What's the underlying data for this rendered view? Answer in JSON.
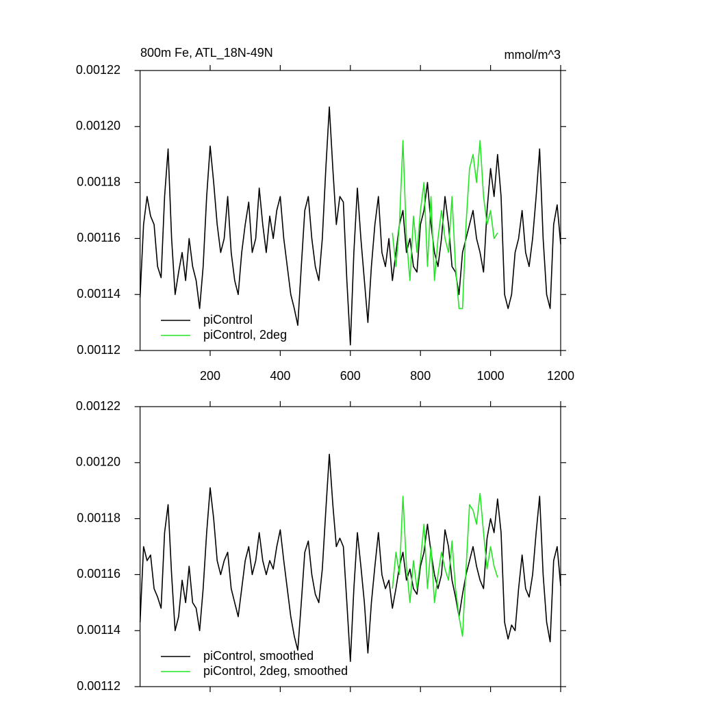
{
  "chart_data": [
    {
      "type": "line",
      "title": "800m Fe, ATL_18N-49N",
      "units": "mmol/m^3",
      "xlim": [
        0,
        1200
      ],
      "ylim": [
        0.00112,
        0.00122
      ],
      "xticks": [
        200,
        400,
        600,
        800,
        1000,
        1200
      ],
      "show_xtick_labels": true,
      "yticks": [
        0.00112,
        0.00114,
        0.00116,
        0.00118,
        {
          "value": 0.0012,
          "label": "0.00120"
        },
        0.00122
      ],
      "series": [
        {
          "name": "piControl",
          "color": "#000000",
          "x": [
            0,
            10,
            20,
            30,
            40,
            50,
            60,
            70,
            80,
            90,
            100,
            110,
            120,
            130,
            140,
            150,
            160,
            170,
            180,
            190,
            200,
            210,
            220,
            230,
            240,
            250,
            260,
            270,
            280,
            290,
            300,
            310,
            320,
            330,
            340,
            350,
            360,
            370,
            380,
            390,
            400,
            410,
            420,
            430,
            440,
            450,
            460,
            470,
            480,
            490,
            500,
            510,
            520,
            530,
            540,
            550,
            560,
            570,
            580,
            590,
            600,
            610,
            620,
            630,
            640,
            650,
            660,
            670,
            680,
            690,
            700,
            710,
            720,
            730,
            740,
            750,
            760,
            770,
            780,
            790,
            800,
            810,
            820,
            830,
            840,
            850,
            860,
            870,
            880,
            890,
            900,
            910,
            920,
            930,
            940,
            950,
            960,
            970,
            980,
            990,
            1000,
            1010,
            1020,
            1030,
            1040,
            1050,
            1060,
            1070,
            1080,
            1090,
            1100,
            1110,
            1120,
            1130,
            1140,
            1150,
            1160,
            1170,
            1180,
            1190,
            1200
          ],
          "values": [
            0.001139,
            0.001165,
            0.001175,
            0.001168,
            0.001165,
            0.00115,
            0.001146,
            0.001175,
            0.001192,
            0.00116,
            0.00114,
            0.001148,
            0.001155,
            0.001145,
            0.00116,
            0.00115,
            0.001145,
            0.001135,
            0.00115,
            0.001175,
            0.001193,
            0.00118,
            0.001165,
            0.001155,
            0.00116,
            0.001175,
            0.001155,
            0.001145,
            0.00114,
            0.001155,
            0.001165,
            0.001173,
            0.001155,
            0.00116,
            0.001178,
            0.001165,
            0.001155,
            0.001168,
            0.00116,
            0.00117,
            0.001175,
            0.00116,
            0.00115,
            0.00114,
            0.001135,
            0.001129,
            0.00115,
            0.00117,
            0.001175,
            0.00116,
            0.00115,
            0.001145,
            0.00116,
            0.001185,
            0.001207,
            0.001185,
            0.001165,
            0.001175,
            0.001173,
            0.001145,
            0.001122,
            0.001155,
            0.001178,
            0.00116,
            0.001145,
            0.00113,
            0.00115,
            0.001165,
            0.001175,
            0.001155,
            0.00115,
            0.00116,
            0.001145,
            0.001155,
            0.001165,
            0.00117,
            0.001155,
            0.00116,
            0.00115,
            0.001148,
            0.001165,
            0.00117,
            0.00118,
            0.001165,
            0.001155,
            0.00115,
            0.00116,
            0.001175,
            0.001165,
            0.00115,
            0.001148,
            0.00114,
            0.001155,
            0.00116,
            0.001165,
            0.00117,
            0.00116,
            0.001155,
            0.001148,
            0.00117,
            0.001185,
            0.001175,
            0.00119,
            0.001175,
            0.00114,
            0.001135,
            0.00114,
            0.001155,
            0.00116,
            0.00117,
            0.001155,
            0.00115,
            0.00116,
            0.001175,
            0.001192,
            0.00116,
            0.00114,
            0.001135,
            0.001165,
            0.001172,
            0.001158
          ]
        },
        {
          "name": "piControl, 2deg",
          "color": "#22e622",
          "x": [
            720,
            730,
            740,
            750,
            760,
            770,
            780,
            790,
            800,
            810,
            820,
            830,
            840,
            850,
            860,
            870,
            880,
            890,
            900,
            910,
            920,
            930,
            940,
            950,
            960,
            970,
            980,
            990,
            1000,
            1010,
            1020
          ],
          "values": [
            0.001162,
            0.00115,
            0.001165,
            0.001195,
            0.00116,
            0.001145,
            0.001168,
            0.001155,
            0.00117,
            0.00118,
            0.00115,
            0.001175,
            0.001145,
            0.00116,
            0.00117,
            0.00116,
            0.001155,
            0.001175,
            0.00115,
            0.001135,
            0.001135,
            0.001165,
            0.001185,
            0.00119,
            0.00118,
            0.001195,
            0.001175,
            0.001165,
            0.00117,
            0.00116,
            0.001162
          ]
        }
      ]
    },
    {
      "type": "line",
      "xlim": [
        0,
        1200
      ],
      "ylim": [
        0.00112,
        0.00122
      ],
      "xticks": [
        200,
        400,
        600,
        800,
        1000,
        1200
      ],
      "show_xtick_labels": false,
      "yticks": [
        0.00112,
        0.00114,
        0.00116,
        0.00118,
        {
          "value": 0.0012,
          "label": "0.00120"
        },
        0.00122
      ],
      "series": [
        {
          "name": "piControl, smoothed",
          "color": "#000000",
          "x": [
            0,
            10,
            20,
            30,
            40,
            50,
            60,
            70,
            80,
            90,
            100,
            110,
            120,
            130,
            140,
            150,
            160,
            170,
            180,
            190,
            200,
            210,
            220,
            230,
            240,
            250,
            260,
            270,
            280,
            290,
            300,
            310,
            320,
            330,
            340,
            350,
            360,
            370,
            380,
            390,
            400,
            410,
            420,
            430,
            440,
            450,
            460,
            470,
            480,
            490,
            500,
            510,
            520,
            530,
            540,
            550,
            560,
            570,
            580,
            590,
            600,
            610,
            620,
            630,
            640,
            650,
            660,
            670,
            680,
            690,
            700,
            710,
            720,
            730,
            740,
            750,
            760,
            770,
            780,
            790,
            800,
            810,
            820,
            830,
            840,
            850,
            860,
            870,
            880,
            890,
            900,
            910,
            920,
            930,
            940,
            950,
            960,
            970,
            980,
            990,
            1000,
            1010,
            1020,
            1030,
            1040,
            1050,
            1060,
            1070,
            1080,
            1090,
            1100,
            1110,
            1120,
            1130,
            1140,
            1150,
            1160,
            1170,
            1180,
            1190,
            1200
          ],
          "values": [
            0.001143,
            0.00117,
            0.001165,
            0.001167,
            0.001155,
            0.001152,
            0.001148,
            0.001175,
            0.001185,
            0.00116,
            0.00114,
            0.001145,
            0.001158,
            0.00115,
            0.001163,
            0.00115,
            0.001148,
            0.00114,
            0.001155,
            0.001175,
            0.001191,
            0.00118,
            0.001165,
            0.00116,
            0.001165,
            0.001168,
            0.001155,
            0.00115,
            0.001145,
            0.001155,
            0.001165,
            0.00117,
            0.00116,
            0.001165,
            0.001175,
            0.001165,
            0.00116,
            0.001165,
            0.001162,
            0.00117,
            0.001176,
            0.001165,
            0.001155,
            0.001145,
            0.001138,
            0.001133,
            0.00115,
            0.001168,
            0.001172,
            0.00116,
            0.001153,
            0.00115,
            0.001162,
            0.001183,
            0.001203,
            0.001185,
            0.00117,
            0.001173,
            0.00117,
            0.00115,
            0.001129,
            0.001155,
            0.001175,
            0.001163,
            0.00115,
            0.001132,
            0.00115,
            0.001163,
            0.001175,
            0.00116,
            0.001155,
            0.001158,
            0.001148,
            0.001155,
            0.001163,
            0.001168,
            0.001158,
            0.001162,
            0.001155,
            0.001153,
            0.001163,
            0.001168,
            0.001178,
            0.001168,
            0.00116,
            0.001155,
            0.00116,
            0.001176,
            0.00117,
            0.001158,
            0.001152,
            0.001145,
            0.001153,
            0.00116,
            0.001165,
            0.00117,
            0.001163,
            0.001158,
            0.001155,
            0.001173,
            0.00118,
            0.001175,
            0.001187,
            0.001175,
            0.001143,
            0.001137,
            0.001142,
            0.00114,
            0.001155,
            0.001167,
            0.001155,
            0.001152,
            0.00116,
            0.001175,
            0.001188,
            0.00116,
            0.001143,
            0.001136,
            0.001165,
            0.00117,
            0.001156
          ]
        },
        {
          "name": "piControl, 2deg, smoothed",
          "color": "#22e622",
          "x": [
            720,
            730,
            740,
            750,
            760,
            770,
            780,
            790,
            800,
            810,
            820,
            830,
            840,
            850,
            860,
            870,
            880,
            890,
            900,
            910,
            920,
            930,
            940,
            950,
            960,
            970,
            980,
            990,
            1000,
            1010,
            1020
          ],
          "values": [
            0.001155,
            0.001168,
            0.00116,
            0.001188,
            0.001163,
            0.00115,
            0.001165,
            0.001155,
            0.001165,
            0.001178,
            0.001155,
            0.00117,
            0.00115,
            0.00116,
            0.001168,
            0.001162,
            0.001158,
            0.001172,
            0.001155,
            0.001145,
            0.001138,
            0.001162,
            0.001185,
            0.001183,
            0.001178,
            0.001189,
            0.001175,
            0.001162,
            0.00117,
            0.001163,
            0.001159
          ]
        }
      ]
    }
  ]
}
